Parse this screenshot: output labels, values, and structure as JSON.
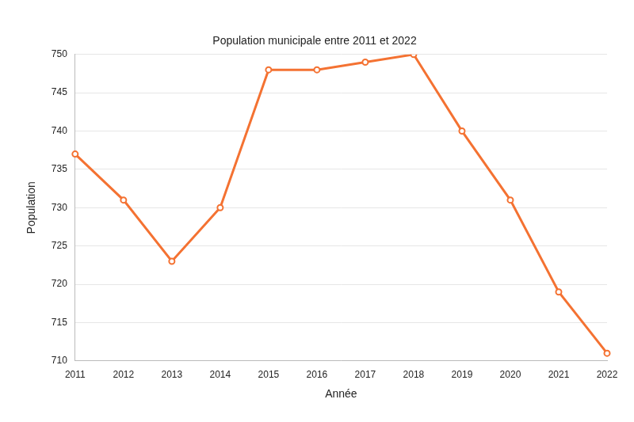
{
  "chart_data": {
    "type": "line",
    "title": "Population municipale entre 2011 et 2022",
    "x_label": "Année",
    "y_label": "Population",
    "categories": [
      "2011",
      "2012",
      "2013",
      "2014",
      "2015",
      "2016",
      "2017",
      "2018",
      "2019",
      "2020",
      "2021",
      "2022"
    ],
    "values": [
      737,
      731,
      723,
      730,
      748,
      748,
      749,
      750,
      740,
      731,
      719,
      711
    ],
    "color": "#f47232",
    "marker": "circle",
    "line_style": "solid",
    "ylim": [
      710,
      750
    ],
    "yticks": [
      710,
      715,
      720,
      725,
      730,
      735,
      740,
      745,
      750
    ],
    "grid": true
  }
}
